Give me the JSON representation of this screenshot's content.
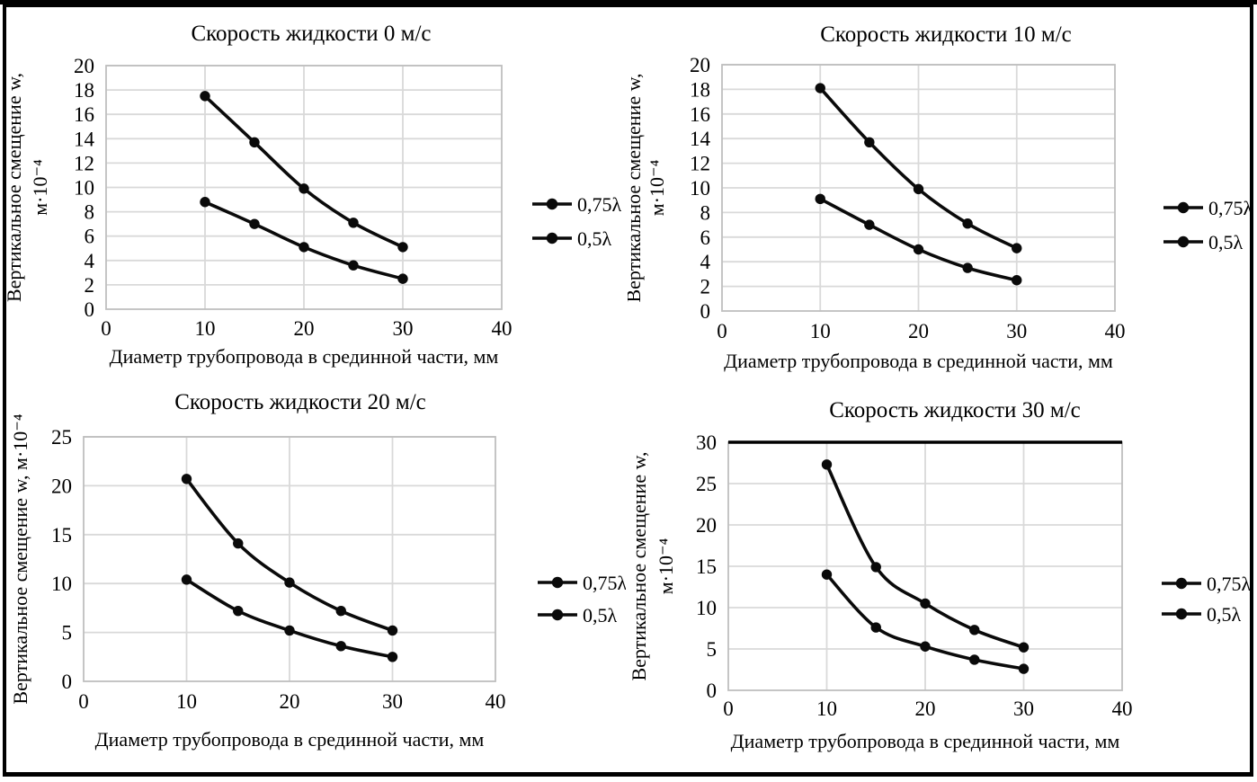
{
  "figure": {
    "description": "Four line charts, 2 by 2 grid, vertical displacement versus pipe mid-section diameter at fluid velocities 0, 10, 20, 30 m/s",
    "background": "#ffffff",
    "frame_color": "#000000"
  },
  "colors": {
    "series_line": "#0a0a0a",
    "marker_fill": "#0a0a0a",
    "gridline": "#d9d9d9",
    "plot_border": "#bfbfbf",
    "text": "#000000",
    "chart4_top_edge": "#000000"
  },
  "chart_data": [
    {
      "type": "line",
      "title": "Скорость жидкости 0 м/с",
      "xlabel": "Диаметр трубопровода в срединной части, мм",
      "ylabel_lines": [
        "Вертикальное смещение w,",
        "м·10⁻⁴"
      ],
      "x": [
        10,
        15,
        20,
        25,
        30
      ],
      "series": [
        {
          "name": "0,75λ",
          "values": [
            17.5,
            13.7,
            9.9,
            7.1,
            5.1
          ]
        },
        {
          "name": "0,5λ",
          "values": [
            8.8,
            7.0,
            5.1,
            3.6,
            2.5
          ]
        }
      ],
      "xlim": [
        0,
        40
      ],
      "xticks": [
        0,
        10,
        20,
        30,
        40
      ],
      "ylim": [
        0,
        20
      ],
      "yticks": [
        0,
        2,
        4,
        6,
        8,
        10,
        12,
        14,
        16,
        18,
        20
      ],
      "grid": true,
      "legend_position": "right",
      "marker": "filled-circle"
    },
    {
      "type": "line",
      "title": "Скорость жидкости 10 м/с",
      "xlabel": "Диаметр трубопровода в срединной части, мм",
      "ylabel_lines": [
        "Вертикальное смещение w,",
        "м·10⁻⁴"
      ],
      "x": [
        10,
        15,
        20,
        25,
        30
      ],
      "series": [
        {
          "name": "0,75λ",
          "values": [
            18.1,
            13.7,
            9.9,
            7.1,
            5.1
          ]
        },
        {
          "name": "0,5λ",
          "values": [
            9.1,
            7.0,
            5.0,
            3.5,
            2.5
          ]
        }
      ],
      "xlim": [
        0,
        40
      ],
      "xticks": [
        0,
        10,
        20,
        30,
        40
      ],
      "ylim": [
        0,
        20
      ],
      "yticks": [
        0,
        2,
        4,
        6,
        8,
        10,
        12,
        14,
        16,
        18,
        20
      ],
      "grid": true,
      "legend_position": "right",
      "marker": "filled-circle"
    },
    {
      "type": "line",
      "title": "Скорость жидкости 20 м/с",
      "xlabel": "Диаметр трубопровода в срединной части, мм",
      "ylabel_lines": [
        "Вертикальное смещение w, м·10⁻⁴"
      ],
      "x": [
        10,
        15,
        20,
        25,
        30
      ],
      "series": [
        {
          "name": "0,75λ",
          "values": [
            20.7,
            14.1,
            10.1,
            7.2,
            5.2
          ]
        },
        {
          "name": "0,5λ",
          "values": [
            10.4,
            7.2,
            5.2,
            3.6,
            2.5
          ]
        }
      ],
      "xlim": [
        0,
        40
      ],
      "xticks": [
        0,
        10,
        20,
        30,
        40
      ],
      "ylim": [
        0,
        25
      ],
      "yticks": [
        0,
        5,
        10,
        15,
        20,
        25
      ],
      "grid": true,
      "legend_position": "right",
      "marker": "filled-circle"
    },
    {
      "type": "line",
      "title": "Скорость жидкости 30 м/с",
      "xlabel": "Диаметр трубопровода в срединной части, мм",
      "ylabel_lines": [
        "Вертикальное смещение w,",
        "м·10⁻⁴"
      ],
      "x": [
        10,
        15,
        20,
        25,
        30
      ],
      "series": [
        {
          "name": "0,75λ",
          "values": [
            27.3,
            14.9,
            10.5,
            7.3,
            5.2
          ]
        },
        {
          "name": "0,5λ",
          "values": [
            14.0,
            7.6,
            5.3,
            3.7,
            2.6
          ]
        }
      ],
      "xlim": [
        0,
        40
      ],
      "xticks": [
        0,
        10,
        20,
        30,
        40
      ],
      "ylim": [
        0,
        30
      ],
      "yticks": [
        0,
        5,
        10,
        15,
        20,
        25,
        30
      ],
      "grid": true,
      "legend_position": "right",
      "marker": "filled-circle"
    }
  ]
}
